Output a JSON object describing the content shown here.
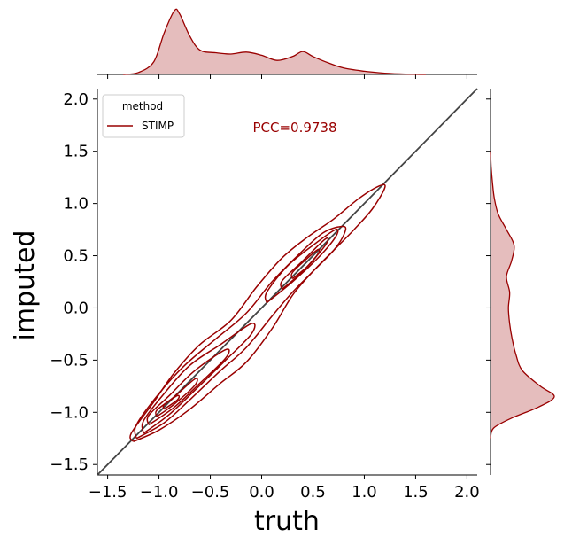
{
  "chart_data": {
    "type": "joint-kde",
    "xlabel": "truth",
    "ylabel": "imputed",
    "xlim": [
      -1.6,
      2.1
    ],
    "ylim": [
      -1.6,
      2.1
    ],
    "x_ticks": [
      -1.5,
      -1.0,
      -0.5,
      0.0,
      0.5,
      1.0,
      1.5,
      2.0
    ],
    "y_ticks": [
      -1.5,
      -1.0,
      -0.5,
      0.0,
      0.5,
      1.0,
      1.5,
      2.0
    ],
    "tick_labels": [
      "−1.5",
      "−1.0",
      "−0.5",
      "0.0",
      "0.5",
      "1.0",
      "1.5",
      "2.0"
    ],
    "legend": {
      "title": "method",
      "entries": [
        "STIMP"
      ],
      "placement": "upper-left"
    },
    "annotation": "PCC=0.9738",
    "identity_line": true,
    "series_color": "#990000",
    "fill_color": "#e5bdbd",
    "marginal_x": {
      "x": [
        -1.35,
        -1.2,
        -1.05,
        -0.95,
        -0.85,
        -0.8,
        -0.7,
        -0.6,
        -0.45,
        -0.3,
        -0.15,
        0.0,
        0.15,
        0.3,
        0.4,
        0.5,
        0.65,
        0.8,
        1.0,
        1.2,
        1.4,
        1.6
      ],
      "density": [
        0.0,
        0.03,
        0.2,
        0.65,
        1.0,
        0.95,
        0.6,
        0.38,
        0.34,
        0.32,
        0.35,
        0.3,
        0.22,
        0.28,
        0.36,
        0.28,
        0.18,
        0.1,
        0.05,
        0.02,
        0.005,
        0.0
      ]
    },
    "marginal_y": {
      "y": [
        -1.25,
        -1.15,
        -1.05,
        -0.95,
        -0.85,
        -0.75,
        -0.6,
        -0.45,
        -0.3,
        -0.15,
        0.0,
        0.15,
        0.3,
        0.45,
        0.6,
        0.75,
        0.9,
        1.05,
        1.2,
        1.35,
        1.5
      ],
      "density": [
        0.0,
        0.05,
        0.35,
        0.75,
        1.0,
        0.78,
        0.5,
        0.4,
        0.34,
        0.3,
        0.28,
        0.3,
        0.25,
        0.33,
        0.37,
        0.25,
        0.12,
        0.06,
        0.03,
        0.01,
        0.0
      ]
    },
    "contours": [
      {
        "lower": [
          [
            -1.25,
            -1.28
          ],
          [
            -1.0,
            -1.17
          ],
          [
            -0.7,
            -0.97
          ],
          [
            -0.4,
            -0.72
          ],
          [
            -0.15,
            -0.52
          ],
          [
            0.1,
            -0.2
          ],
          [
            0.3,
            0.12
          ],
          [
            0.5,
            0.35
          ],
          [
            0.7,
            0.55
          ],
          [
            0.9,
            0.75
          ],
          [
            1.08,
            0.95
          ],
          [
            1.2,
            1.15
          ]
        ],
        "upper": [
          [
            -1.27,
            -1.2
          ],
          [
            -1.05,
            -0.9
          ],
          [
            -0.85,
            -0.62
          ],
          [
            -0.6,
            -0.35
          ],
          [
            -0.3,
            -0.12
          ],
          [
            -0.05,
            0.2
          ],
          [
            0.2,
            0.48
          ],
          [
            0.45,
            0.68
          ],
          [
            0.7,
            0.85
          ],
          [
            0.95,
            1.05
          ],
          [
            1.15,
            1.17
          ]
        ]
      },
      {
        "lower": [
          [
            -1.22,
            -1.25
          ],
          [
            -0.95,
            -1.1
          ],
          [
            -0.7,
            -0.88
          ],
          [
            -0.4,
            -0.6
          ],
          [
            -0.15,
            -0.38
          ],
          [
            0.1,
            -0.08
          ],
          [
            0.3,
            0.15
          ],
          [
            0.5,
            0.35
          ],
          [
            0.7,
            0.55
          ],
          [
            0.8,
            0.7
          ]
        ],
        "upper": [
          [
            -1.22,
            -1.12
          ],
          [
            -1.0,
            -0.82
          ],
          [
            -0.75,
            -0.55
          ],
          [
            -0.45,
            -0.3
          ],
          [
            -0.15,
            -0.05
          ],
          [
            0.1,
            0.25
          ],
          [
            0.35,
            0.5
          ],
          [
            0.6,
            0.72
          ],
          [
            0.8,
            0.78
          ]
        ]
      },
      {
        "lower": [
          [
            -1.15,
            -1.2
          ],
          [
            -0.9,
            -1.02
          ],
          [
            -0.6,
            -0.74
          ],
          [
            -0.35,
            -0.5
          ],
          [
            -0.1,
            -0.25
          ]
        ],
        "upper": [
          [
            -1.15,
            -1.08
          ],
          [
            -0.95,
            -0.82
          ],
          [
            -0.7,
            -0.55
          ],
          [
            -0.4,
            -0.35
          ],
          [
            -0.1,
            -0.15
          ]
        ]
      },
      {
        "lower": [
          [
            0.05,
            0.05
          ],
          [
            0.3,
            0.25
          ],
          [
            0.55,
            0.48
          ],
          [
            0.72,
            0.68
          ]
        ],
        "upper": [
          [
            0.05,
            0.15
          ],
          [
            0.25,
            0.4
          ],
          [
            0.5,
            0.6
          ],
          [
            0.72,
            0.75
          ]
        ]
      },
      {
        "lower": [
          [
            -1.1,
            -1.12
          ],
          [
            -0.85,
            -0.95
          ],
          [
            -0.6,
            -0.72
          ],
          [
            -0.35,
            -0.48
          ]
        ],
        "upper": [
          [
            -1.1,
            -1.03
          ],
          [
            -0.9,
            -0.84
          ],
          [
            -0.65,
            -0.6
          ],
          [
            -0.35,
            -0.4
          ]
        ]
      },
      {
        "lower": [
          [
            0.2,
            0.18
          ],
          [
            0.4,
            0.35
          ],
          [
            0.62,
            0.6
          ]
        ],
        "upper": [
          [
            0.2,
            0.26
          ],
          [
            0.4,
            0.45
          ],
          [
            0.62,
            0.66
          ]
        ]
      },
      {
        "lower": [
          [
            -1.02,
            -1.04
          ],
          [
            -0.85,
            -0.92
          ],
          [
            -0.65,
            -0.74
          ]
        ],
        "upper": [
          [
            -1.02,
            -0.98
          ],
          [
            -0.85,
            -0.85
          ],
          [
            -0.65,
            -0.68
          ]
        ]
      },
      {
        "lower": [
          [
            0.3,
            0.28
          ],
          [
            0.45,
            0.4
          ],
          [
            0.55,
            0.52
          ]
        ],
        "upper": [
          [
            0.3,
            0.34
          ],
          [
            0.45,
            0.48
          ],
          [
            0.55,
            0.56
          ]
        ]
      },
      {
        "lower": [
          [
            -0.95,
            -0.97
          ],
          [
            -0.82,
            -0.88
          ]
        ],
        "upper": [
          [
            -0.95,
            -0.93
          ],
          [
            -0.82,
            -0.84
          ]
        ]
      }
    ]
  }
}
